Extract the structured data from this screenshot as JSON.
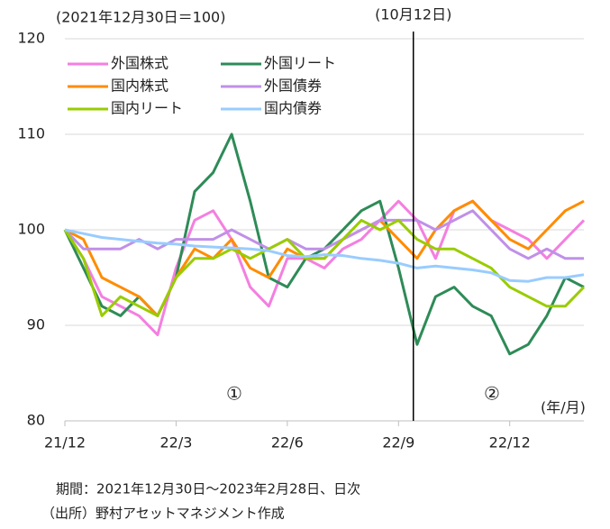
{
  "chart_data": {
    "type": "line",
    "subtitle": "(2021年12月30日＝100)",
    "x_unit_label": "(年/月)",
    "x": [
      0,
      0.5,
      1,
      1.5,
      2,
      2.5,
      3,
      3.5,
      4,
      4.5,
      5,
      5.5,
      6,
      6.5,
      7,
      7.5,
      8,
      8.5,
      9,
      9.5,
      10,
      10.5,
      11,
      11.5,
      12,
      12.5,
      13,
      13.5,
      14
    ],
    "xlim": [
      0,
      14
    ],
    "xticks": [
      {
        "value": 0,
        "label": "21/12"
      },
      {
        "value": 3,
        "label": "22/3"
      },
      {
        "value": 6,
        "label": "22/6"
      },
      {
        "value": 9,
        "label": "22/9"
      },
      {
        "value": 12,
        "label": "22/12"
      }
    ],
    "ylim": [
      80,
      120
    ],
    "yticks": [
      80,
      90,
      100,
      110,
      120
    ],
    "grid": true,
    "legend": "top-left",
    "vline": {
      "x": 9.4,
      "label": "(10月12日)"
    },
    "annotations": [
      "①",
      "②"
    ],
    "series": [
      {
        "name": "外国株式",
        "color": "#f47fe0",
        "values": [
          100,
          97,
          93,
          92,
          91,
          89,
          96,
          101,
          102,
          99,
          94,
          92,
          97,
          97,
          96,
          98,
          99,
          101,
          103,
          101,
          97,
          102,
          103,
          101,
          100,
          99,
          97,
          99,
          101
        ]
      },
      {
        "name": "外国リート",
        "color": "#2e8b57",
        "values": [
          100,
          96,
          92,
          91,
          93,
          91,
          95,
          104,
          106,
          110,
          103,
          95,
          94,
          97,
          98,
          100,
          102,
          103,
          96,
          88,
          93,
          94,
          92,
          91,
          87,
          88,
          91,
          95,
          94
        ]
      },
      {
        "name": "国内株式",
        "color": "#ff8c00",
        "values": [
          100,
          99,
          95,
          94,
          93,
          91,
          95,
          98,
          97,
          99,
          96,
          95,
          98,
          97,
          97,
          99,
          100,
          101,
          99,
          97,
          100,
          102,
          103,
          101,
          99,
          98,
          100,
          102,
          103
        ]
      },
      {
        "name": "外国債券",
        "color": "#c090e8",
        "values": [
          100,
          98,
          98,
          98,
          99,
          98,
          99,
          99,
          99,
          100,
          99,
          98,
          99,
          98,
          98,
          99,
          100,
          101,
          101,
          101,
          100,
          101,
          102,
          100,
          98,
          97,
          98,
          97,
          97
        ]
      },
      {
        "name": "国内リート",
        "color": "#99cc00",
        "values": [
          100,
          97,
          91,
          93,
          92,
          91,
          95,
          97,
          97,
          98,
          97,
          98,
          99,
          97,
          97,
          99,
          101,
          100,
          101,
          99,
          98,
          98,
          97,
          96,
          94,
          93,
          92,
          92,
          94
        ]
      },
      {
        "name": "国内債券",
        "color": "#99ccff",
        "values": [
          100,
          99.6,
          99.2,
          99,
          98.8,
          98.6,
          98.5,
          98.3,
          98.2,
          98.1,
          98,
          97.8,
          97.3,
          97.2,
          97.4,
          97.3,
          97,
          96.8,
          96.5,
          96,
          96.2,
          96,
          95.8,
          95.5,
          94.7,
          94.6,
          95,
          95,
          95.3
        ]
      }
    ],
    "notes": [
      "期間：2021年12月30日～2023年2月28日、日次",
      "（出所）野村アセットマネジメント作成"
    ]
  }
}
